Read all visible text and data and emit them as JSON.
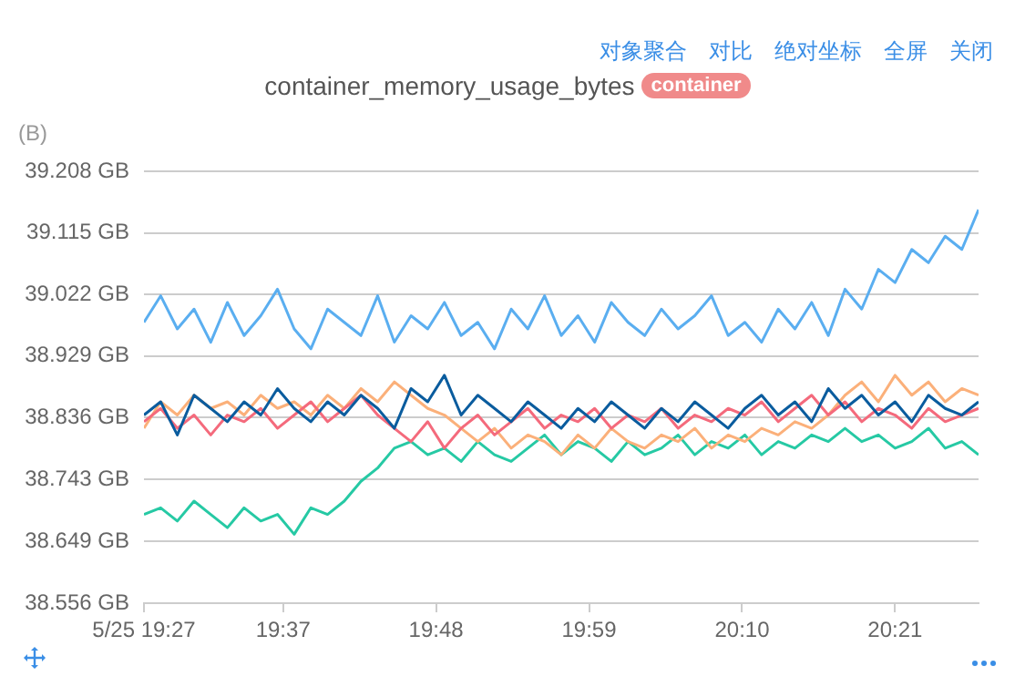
{
  "chart_data": {
    "type": "line",
    "title": "container_memory_usage_bytes",
    "ylabel": "(B)",
    "annotations": [
      "container",
      "对象聚合",
      "对比",
      "绝对坐标",
      "全屏",
      "关闭"
    ],
    "x": [
      19.45,
      19.47,
      19.49,
      19.51,
      19.53,
      19.55,
      19.57,
      19.59,
      19.61,
      19.63,
      19.65,
      19.67,
      19.69,
      19.71,
      19.73,
      19.75,
      19.77,
      19.79,
      19.81,
      19.83,
      19.85,
      19.87,
      19.89,
      19.91,
      19.93,
      19.95,
      19.97,
      19.99,
      20.01,
      20.03,
      20.05,
      20.07,
      20.09,
      20.11,
      20.13,
      20.15,
      20.17,
      20.19,
      20.21,
      20.23,
      20.25,
      20.27,
      20.29,
      20.31,
      20.33,
      20.35,
      20.37,
      20.39,
      20.41,
      20.43,
      20.45
    ],
    "series": [
      {
        "color": "#5aaef0",
        "values": [
          38.98,
          39.02,
          38.97,
          39.0,
          38.95,
          39.01,
          38.96,
          38.99,
          39.03,
          38.97,
          38.94,
          39.0,
          38.98,
          38.96,
          39.02,
          38.95,
          38.99,
          38.97,
          39.01,
          38.96,
          38.98,
          38.94,
          39.0,
          38.97,
          39.02,
          38.96,
          38.99,
          38.95,
          39.01,
          38.98,
          38.96,
          39.0,
          38.97,
          38.99,
          39.02,
          38.96,
          38.98,
          38.95,
          39.0,
          38.97,
          39.01,
          38.96,
          39.03,
          39.0,
          39.06,
          39.04,
          39.09,
          39.07,
          39.11,
          39.09,
          39.15
        ]
      },
      {
        "color": "#0a5c9e",
        "values": [
          38.84,
          38.86,
          38.81,
          38.87,
          38.85,
          38.83,
          38.86,
          38.84,
          38.88,
          38.85,
          38.83,
          38.86,
          38.84,
          38.87,
          38.85,
          38.82,
          38.88,
          38.86,
          38.9,
          38.84,
          38.87,
          38.85,
          38.83,
          38.86,
          38.84,
          38.82,
          38.85,
          38.83,
          38.86,
          38.84,
          38.82,
          38.85,
          38.83,
          38.86,
          38.84,
          38.82,
          38.85,
          38.87,
          38.84,
          38.86,
          38.83,
          38.88,
          38.85,
          38.87,
          38.84,
          38.86,
          38.83,
          38.87,
          38.85,
          38.84,
          38.86
        ]
      },
      {
        "color": "#f46a7c",
        "values": [
          38.83,
          38.85,
          38.82,
          38.84,
          38.81,
          38.84,
          38.83,
          38.85,
          38.82,
          38.84,
          38.86,
          38.83,
          38.85,
          38.87,
          38.84,
          38.82,
          38.8,
          38.83,
          38.79,
          38.82,
          38.84,
          38.81,
          38.83,
          38.85,
          38.82,
          38.84,
          38.83,
          38.85,
          38.82,
          38.84,
          38.83,
          38.85,
          38.82,
          38.84,
          38.83,
          38.85,
          38.84,
          38.86,
          38.83,
          38.85,
          38.87,
          38.84,
          38.86,
          38.83,
          38.85,
          38.84,
          38.82,
          38.85,
          38.83,
          38.84,
          38.85
        ]
      },
      {
        "color": "#fbb07a",
        "values": [
          38.82,
          38.86,
          38.84,
          38.87,
          38.85,
          38.86,
          38.84,
          38.87,
          38.85,
          38.86,
          38.84,
          38.87,
          38.85,
          38.88,
          38.86,
          38.89,
          38.87,
          38.85,
          38.84,
          38.82,
          38.8,
          38.82,
          38.79,
          38.81,
          38.8,
          38.78,
          38.81,
          38.79,
          38.82,
          38.8,
          38.79,
          38.81,
          38.8,
          38.82,
          38.79,
          38.81,
          38.8,
          38.82,
          38.81,
          38.83,
          38.82,
          38.84,
          38.87,
          38.89,
          38.86,
          38.9,
          38.87,
          38.89,
          38.86,
          38.88,
          38.87
        ]
      },
      {
        "color": "#26c9a4",
        "values": [
          38.69,
          38.7,
          38.68,
          38.71,
          38.69,
          38.67,
          38.7,
          38.68,
          38.69,
          38.66,
          38.7,
          38.69,
          38.71,
          38.74,
          38.76,
          38.79,
          38.8,
          38.78,
          38.79,
          38.77,
          38.8,
          38.78,
          38.77,
          38.79,
          38.81,
          38.78,
          38.8,
          38.79,
          38.77,
          38.8,
          38.78,
          38.79,
          38.81,
          38.78,
          38.8,
          38.79,
          38.81,
          38.78,
          38.8,
          38.79,
          38.81,
          38.8,
          38.82,
          38.8,
          38.81,
          38.79,
          38.8,
          38.82,
          38.79,
          38.8,
          38.78
        ]
      }
    ],
    "xlim": [
      19.45,
      20.45
    ],
    "xticks": [
      {
        "value": 19.45,
        "label": "5/25 19:27"
      },
      {
        "value": 19.6167,
        "label": "19:37"
      },
      {
        "value": 19.8,
        "label": "19:48"
      },
      {
        "value": 19.9833,
        "label": "19:59"
      },
      {
        "value": 20.1667,
        "label": "20:10"
      },
      {
        "value": 20.35,
        "label": "20:21"
      }
    ],
    "ylim": [
      38.556,
      39.208
    ],
    "yticks": [
      {
        "value": 38.556,
        "label": "38.556 GB"
      },
      {
        "value": 38.649,
        "label": "38.649 GB"
      },
      {
        "value": 38.743,
        "label": "38.743 GB"
      },
      {
        "value": 38.836,
        "label": "38.836 GB"
      },
      {
        "value": 38.929,
        "label": "38.929 GB"
      },
      {
        "value": 39.022,
        "label": "39.022 GB"
      },
      {
        "value": 39.115,
        "label": "39.115 GB"
      },
      {
        "value": 39.208,
        "label": "39.208 GB"
      }
    ],
    "grid": "y",
    "marker": "none",
    "line_style": "solid"
  }
}
